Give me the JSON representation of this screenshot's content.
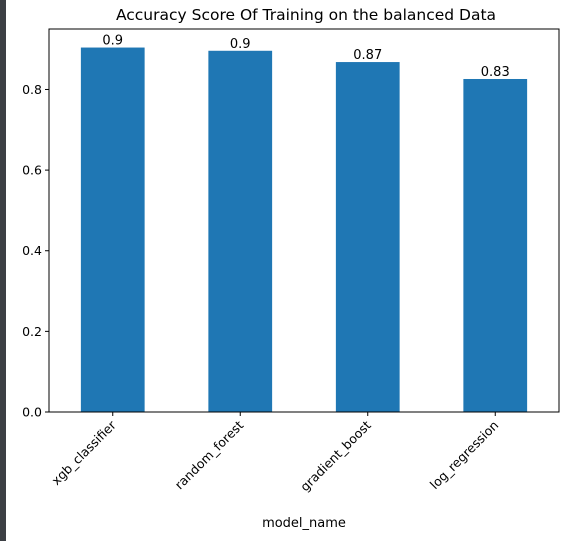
{
  "chart_data": {
    "type": "bar",
    "title": "Accuracy Score Of Training on the balanced Data",
    "xlabel": "model_name",
    "ylabel": "",
    "categories": [
      "xgb_classifier",
      "random_forest",
      "gradient_boost",
      "log_regression"
    ],
    "values": [
      0.904,
      0.896,
      0.868,
      0.826
    ],
    "value_labels": [
      "0.9",
      "0.9",
      "0.87",
      "0.83"
    ],
    "ylim": [
      0,
      0.95
    ],
    "yticks": [
      0.0,
      0.2,
      0.4,
      0.6,
      0.8
    ],
    "ytick_labels": [
      "0.0",
      "0.2",
      "0.4",
      "0.6",
      "0.8"
    ],
    "bar_color": "#1f77b4",
    "grid": false,
    "legend": "none"
  }
}
